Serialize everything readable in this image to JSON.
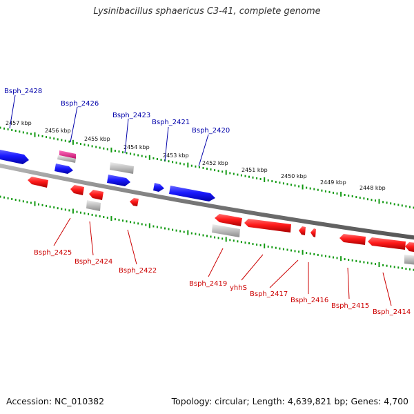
{
  "title": "Lysinibacillus sphaericus C3-41, complete genome",
  "footer": {
    "accession": "Accession: NC_010382",
    "topology": "Topology: circular; Length: 4,639,821 bp; Genes: 4,700"
  },
  "colors": {
    "forward": "#1010e0",
    "reverse": "#e01010",
    "pseudo": "#b8b8b8",
    "rna": "#e02890",
    "ruler_tick": "#119911",
    "backbone": "#777777",
    "label_forward": "#0000aa",
    "label_reverse": "#cc0000"
  },
  "kbp_labels": [
    "2457 kbp",
    "2456 kbp",
    "2455 kbp",
    "2454 kbp",
    "2453 kbp",
    "2452 kbp",
    "2451 kbp",
    "2450 kbp",
    "2449 kbp",
    "2448 kbp"
  ],
  "forward_labels": [
    "Bsph_2428",
    "Bsph_2426",
    "Bsph_2423",
    "Bsph_2421",
    "Bsph_2420"
  ],
  "reverse_labels": [
    "Bsph_2425",
    "Bsph_2424",
    "Bsph_2422",
    "Bsph_2419",
    "yhhS",
    "Bsph_2417",
    "Bsph_2416",
    "Bsph_2415",
    "Bsph_2414"
  ]
}
